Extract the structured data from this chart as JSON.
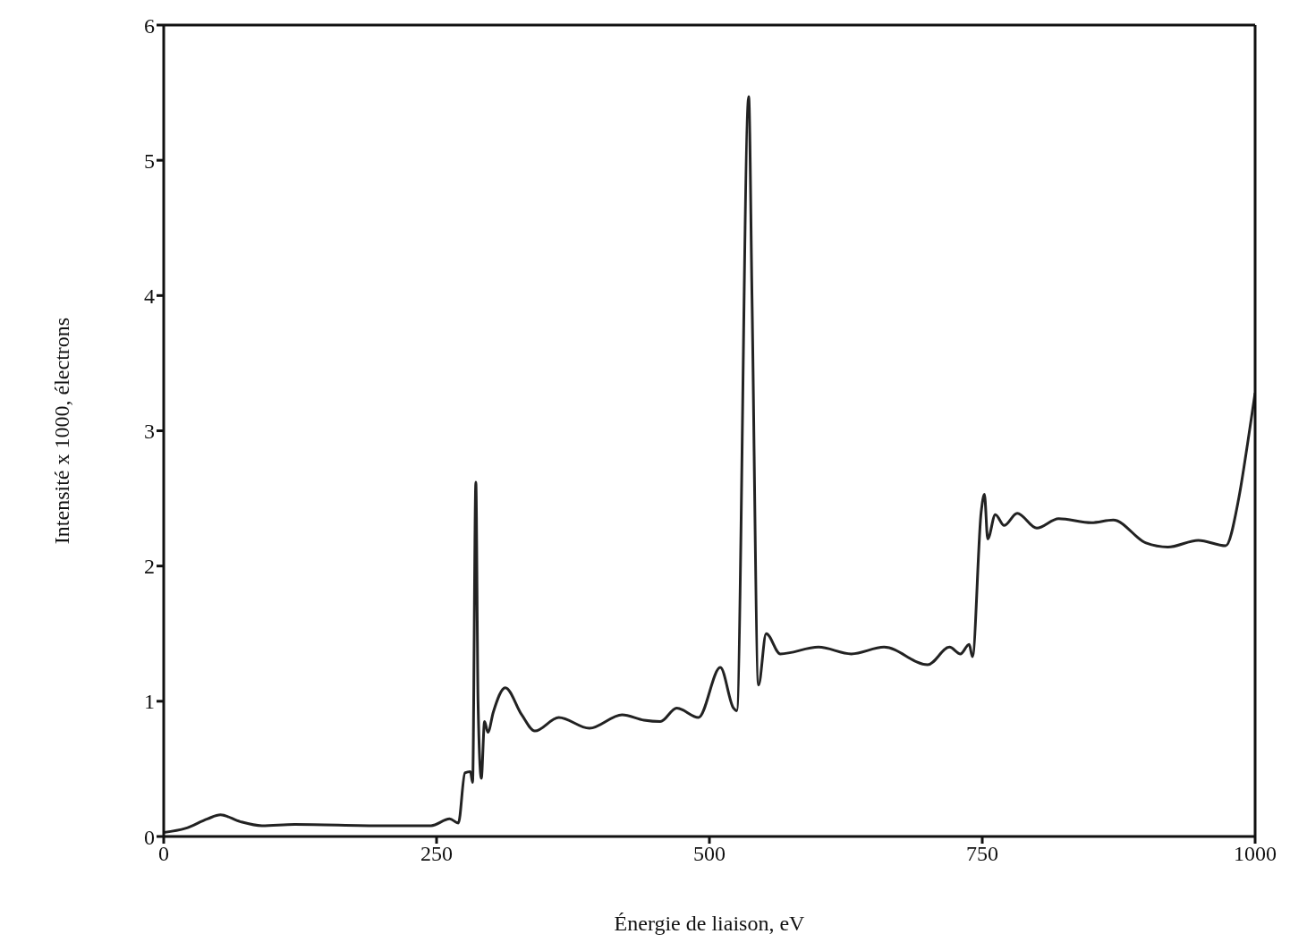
{
  "chart_data": {
    "type": "line",
    "xlabel": "Énergie de liaison, eV",
    "ylabel": "Intensité x 1000, électrons",
    "x": [
      0,
      20,
      40,
      52,
      70,
      90,
      120,
      200,
      245,
      262,
      270,
      276,
      281,
      283,
      286,
      288,
      291,
      294,
      297,
      302,
      313,
      328,
      340,
      362,
      390,
      420,
      440,
      455,
      470,
      490,
      510,
      522,
      525,
      536,
      539,
      545,
      552,
      565,
      600,
      630,
      660,
      700,
      720,
      730,
      738,
      741,
      749,
      752,
      755,
      762,
      770,
      782,
      800,
      820,
      850,
      870,
      900,
      920,
      948,
      973,
      985,
      993,
      1000
    ],
    "series": [
      {
        "color": "#222222",
        "values": [
          0.03,
          0.06,
          0.13,
          0.16,
          0.11,
          0.08,
          0.09,
          0.08,
          0.08,
          0.13,
          0.1,
          0.47,
          0.48,
          0.4,
          2.62,
          1.0,
          0.43,
          0.85,
          0.77,
          0.92,
          1.1,
          0.9,
          0.78,
          0.88,
          0.8,
          0.9,
          0.86,
          0.85,
          0.95,
          0.88,
          1.25,
          0.95,
          0.93,
          5.47,
          4.0,
          1.12,
          1.5,
          1.35,
          1.4,
          1.35,
          1.4,
          1.27,
          1.4,
          1.35,
          1.42,
          1.33,
          2.4,
          2.53,
          2.2,
          2.38,
          2.3,
          2.39,
          2.28,
          2.35,
          2.32,
          2.34,
          2.17,
          2.14,
          2.19,
          2.15,
          2.5,
          2.9,
          3.28
        ]
      }
    ],
    "xlim": [
      0,
      1000
    ],
    "xticks": [
      0,
      250,
      500,
      750,
      1000
    ],
    "ylim": [
      0,
      6
    ],
    "yticks": [
      0,
      1,
      2,
      3,
      4,
      5,
      6
    ],
    "grid": false,
    "marker": "none",
    "line_style": "solid"
  }
}
